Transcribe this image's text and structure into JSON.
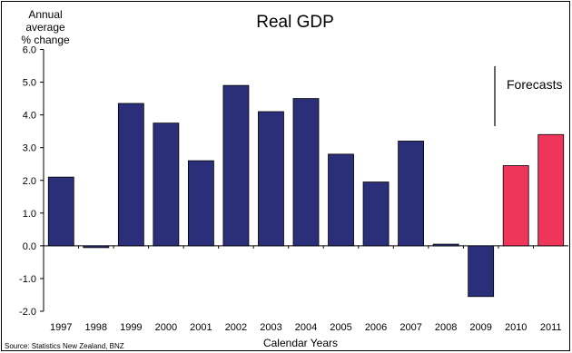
{
  "chart_data": {
    "type": "bar",
    "title": "Real GDP",
    "ylabel": "Annual average\n% change",
    "xlabel": "Calendar Years",
    "source": "Source: Statistics New Zealand, BNZ",
    "annotation": "Forecasts",
    "categories": [
      "1997",
      "1998",
      "1999",
      "2000",
      "2001",
      "2002",
      "2003",
      "2004",
      "2005",
      "2006",
      "2007",
      "2008",
      "2009",
      "2010",
      "2011"
    ],
    "values": [
      2.1,
      -0.05,
      4.35,
      3.75,
      2.6,
      4.9,
      4.1,
      4.5,
      2.8,
      1.95,
      3.2,
      0.05,
      -1.55,
      2.45,
      3.4
    ],
    "forecast": [
      false,
      false,
      false,
      false,
      false,
      false,
      false,
      false,
      false,
      false,
      false,
      false,
      false,
      true,
      true
    ],
    "ylim": [
      -2.0,
      6.0
    ],
    "yticks": [
      "-2.0",
      "-1.0",
      "0.0",
      "1.0",
      "2.0",
      "3.0",
      "4.0",
      "5.0",
      "6.0"
    ],
    "colors": {
      "actual": "#2b2f7a",
      "forecast": "#f0355a"
    },
    "grid": false
  }
}
